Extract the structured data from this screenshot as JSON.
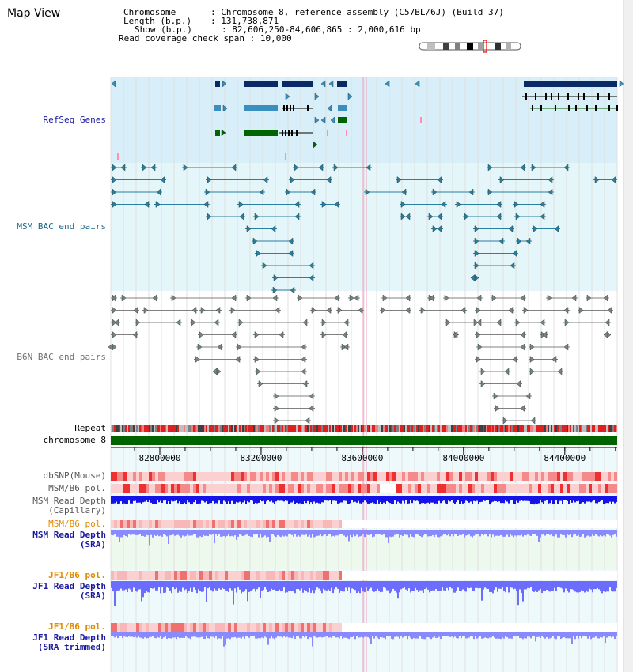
{
  "view_title": "Map View",
  "info": {
    "chromosome_label": "Chromosome",
    "chromosome_value": "Chromosome 8, reference assembly (C57BL/6J) (Build 37)",
    "length_label": "Length (b.p.)",
    "length_value": "131,738,871",
    "show_label": "Show (b.p.)",
    "show_value": "82,606,250-84,606,865 : 2,000,616 bp",
    "coverage_label": "Read coverage check span",
    "coverage_value": "10,000"
  },
  "tracks": {
    "refseq": "RefSeq Genes",
    "msm_bac": "MSM BAC end pairs",
    "b6n_bac": "B6N BAC end pairs",
    "repeat": "Repeat",
    "chromosome": "chromosome 8",
    "dbsnp": "dbSNP(Mouse)",
    "msm_b6_pol": "MSM/B6 pol.",
    "msm_read_depth_cap_1": "MSM Read Depth",
    "msm_read_depth_cap_2": "(Capillary)",
    "msm_b6_pol_sra": "MSM/B6 pol.",
    "msm_read_depth_sra_1": "MSM Read Depth",
    "msm_read_depth_sra_2": "(SRA)",
    "jf1_b6_pol": "JF1/B6 pol.",
    "jf1_read_depth_1": "JF1 Read Depth",
    "jf1_read_depth_2": "(SRA)",
    "jf1_b6_pol_2": "JF1/B6 pol.",
    "jf1_read_depth_trim_1": "JF1 Read Depth",
    "jf1_read_depth_trim_2": "(SRA trimmed)"
  },
  "axis": {
    "ticks": [
      "82800000",
      "83200000",
      "83600000",
      "84000000",
      "84400000"
    ],
    "tick_values": [
      82800000,
      83200000,
      83600000,
      84000000,
      84400000
    ],
    "view_start": 82606250,
    "view_end": 84606865
  },
  "colors": {
    "gene_dark": "#0a2a66",
    "gene_mid": "#3b8fbf",
    "gene_green": "#006400",
    "msm_pair": "#2a7fa0",
    "b6n_pair": "#808080",
    "refseq_bg": "#d8eef9",
    "msm_bg": "#e4f6f9",
    "depth_blue": "#1010ee",
    "depth_light": "#8080ff",
    "pol_red": "#ee3030",
    "chrom_green": "#006400"
  }
}
